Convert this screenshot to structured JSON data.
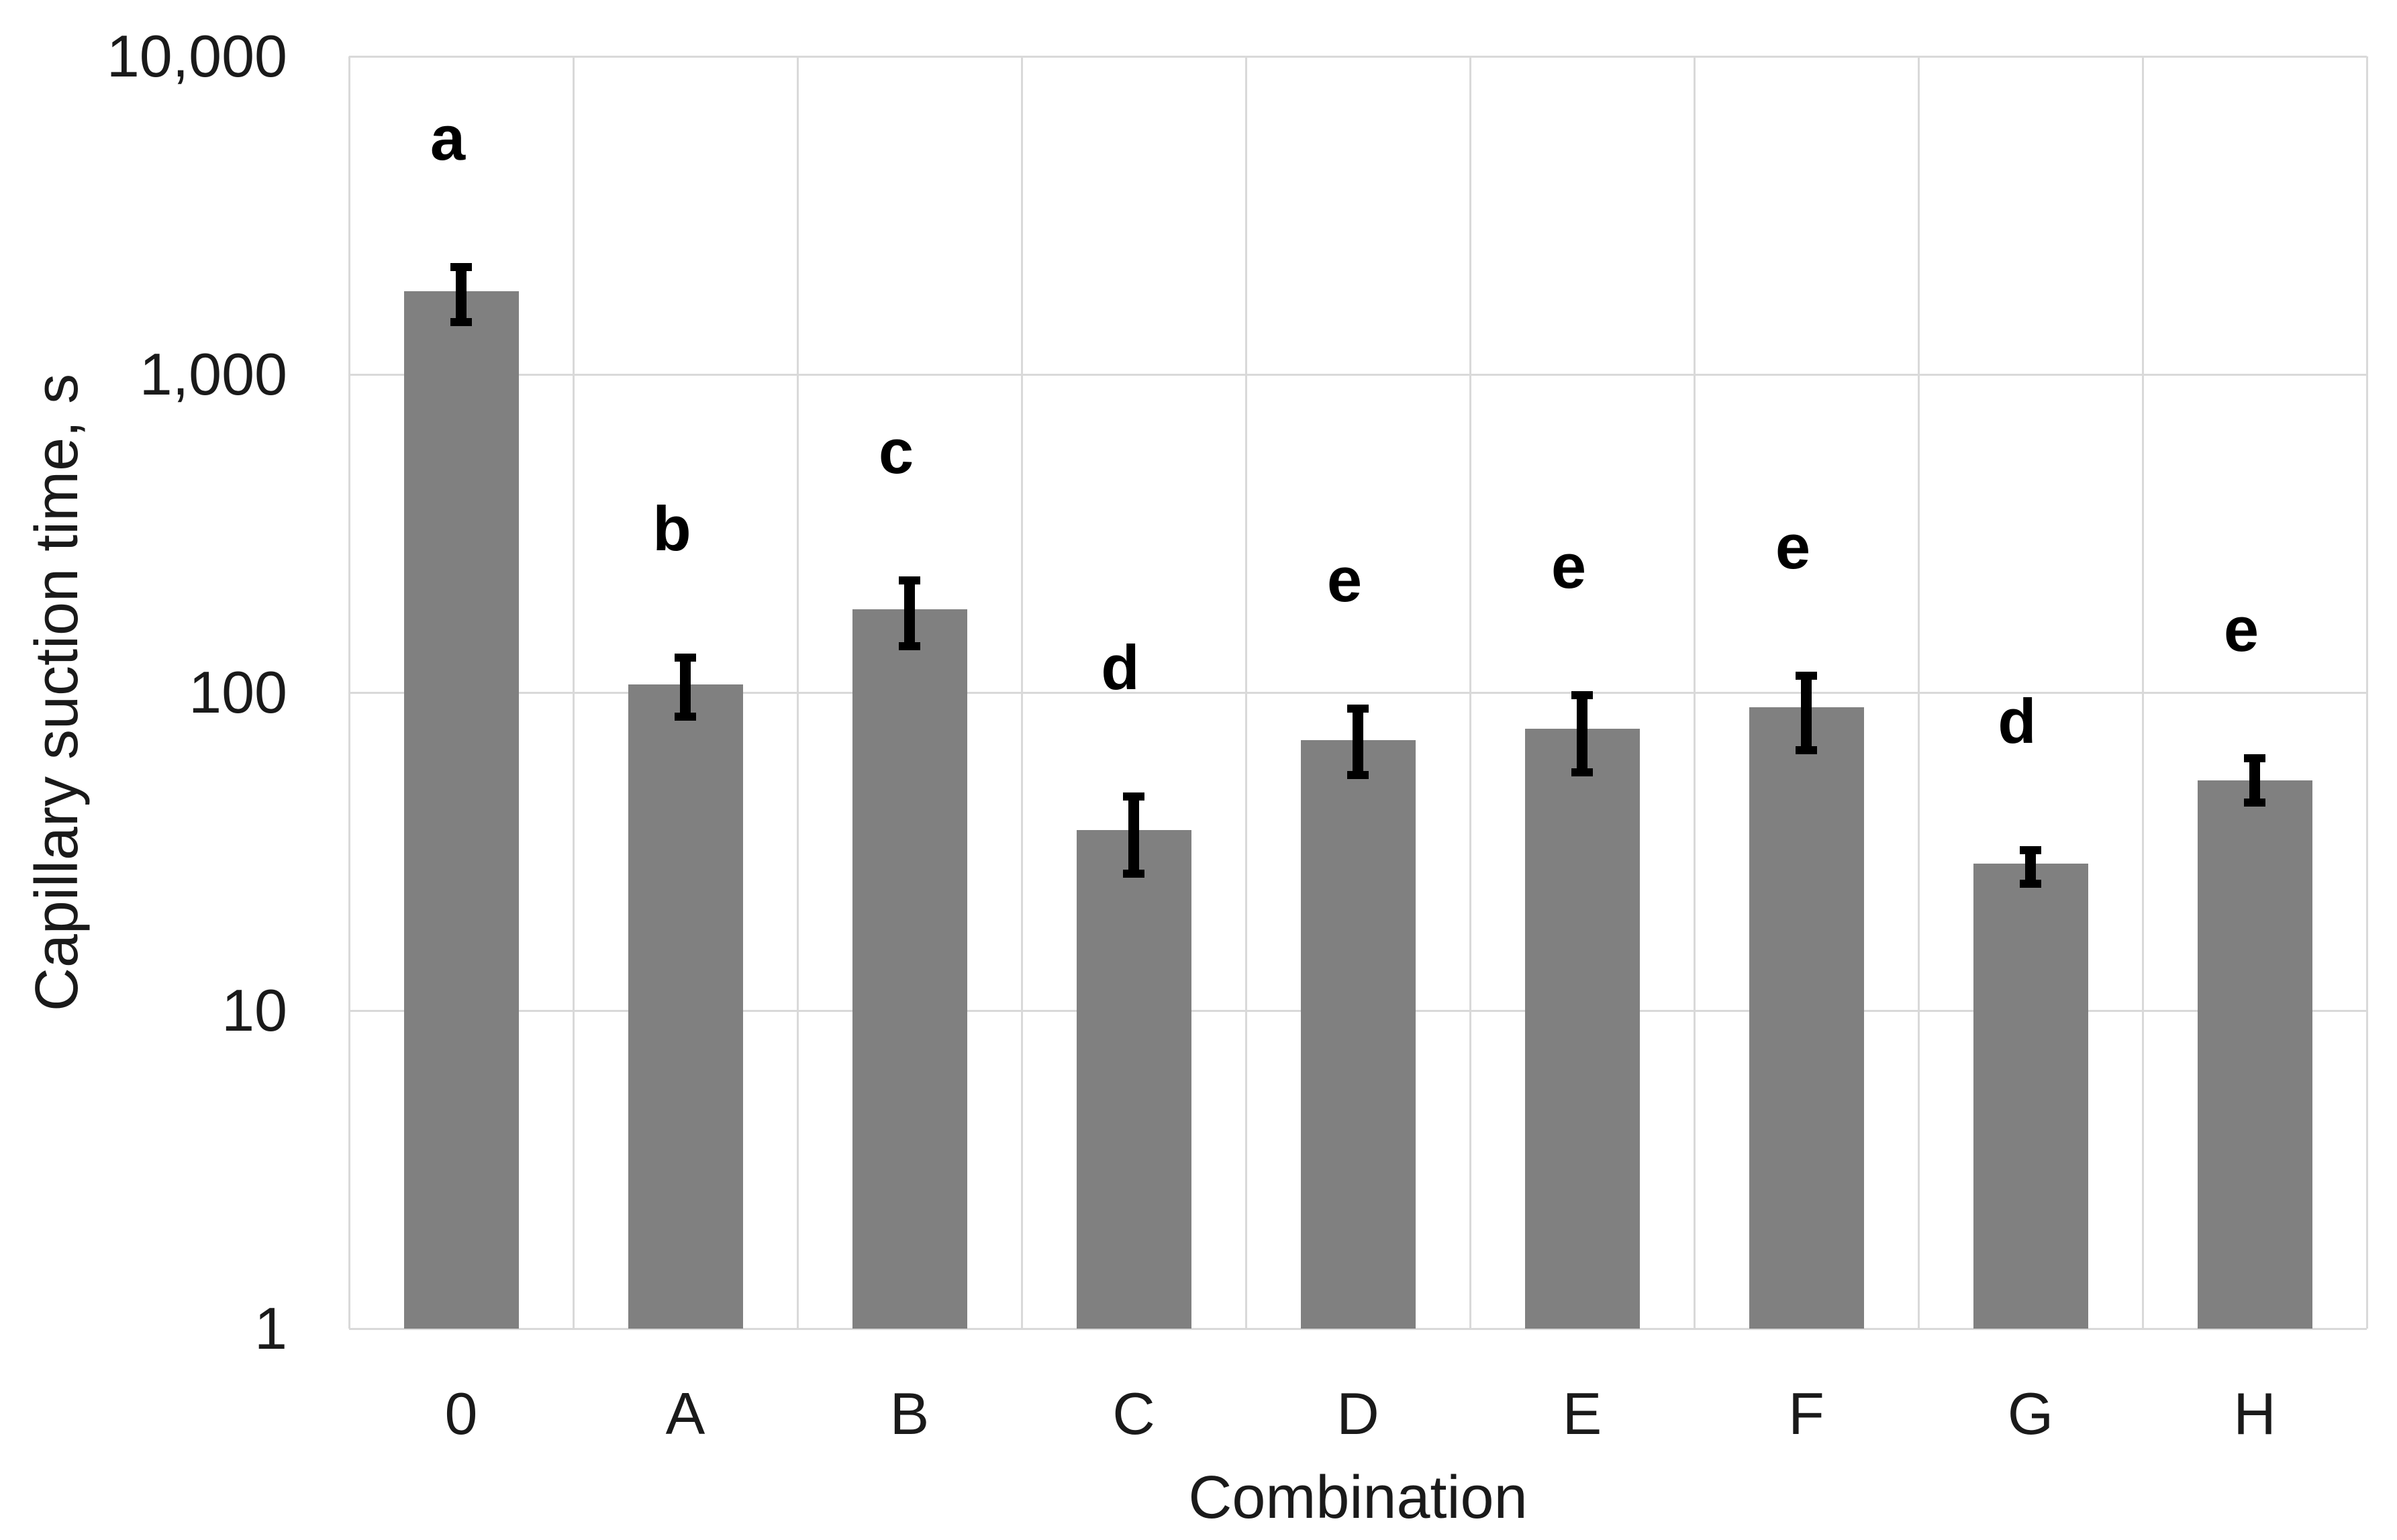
{
  "chart_data": {
    "type": "bar",
    "title": "",
    "xlabel": "Combination",
    "ylabel": "Capillary suction time, s",
    "y_scale": "log10",
    "ylim": [
      1,
      10000
    ],
    "yticks": [
      {
        "value": 10000,
        "label": "10,000"
      },
      {
        "value": 1000,
        "label": "1,000"
      },
      {
        "value": 100,
        "label": "100"
      },
      {
        "value": 10,
        "label": "10"
      },
      {
        "value": 1,
        "label": "1"
      }
    ],
    "categories": [
      "0",
      "A",
      "B",
      "C",
      "D",
      "E",
      "F",
      "G",
      "H"
    ],
    "values": [
      1830,
      106,
      183,
      37,
      71,
      77,
      90,
      29,
      53
    ],
    "error_low": [
      1460,
      84,
      140,
      27,
      55,
      56,
      66,
      25,
      45
    ],
    "error_high": [
      2180,
      129,
      225,
      47,
      89,
      98,
      113,
      32,
      62
    ],
    "significance_letters": [
      "a",
      "b",
      "c",
      "d",
      "e",
      "e",
      "e",
      "d",
      "e"
    ],
    "grid": true,
    "legend": false,
    "bar_color": "#808080",
    "gridline_color": "#d9d9d9",
    "error_bar_color": "#000000",
    "text_color": "#1a1a1a",
    "letter_color": "#000000",
    "background_color": "#ffffff"
  }
}
